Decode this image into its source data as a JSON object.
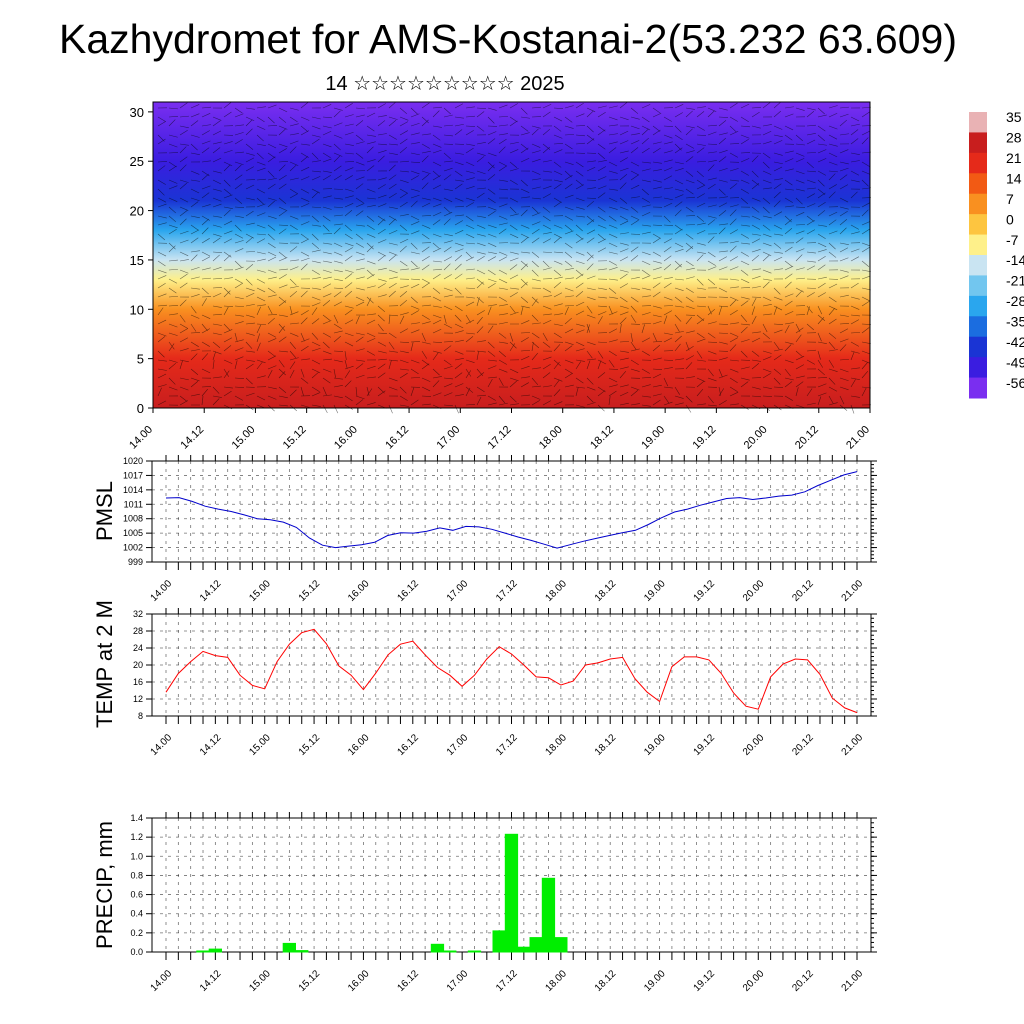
{
  "title": "Kazhydromet for AMS-Kostanai-2(53.232 63.609)",
  "subtitle": "14 ☆☆☆☆☆☆☆☆☆ 2025",
  "time_labels": [
    "14.00",
    "14.12",
    "15.00",
    "15.12",
    "16.00",
    "16.12",
    "17.00",
    "17.12",
    "18.00",
    "18.12",
    "19.00",
    "19.12",
    "20.00",
    "20.12",
    "21.00"
  ],
  "colorbar": {
    "labels": [
      "35",
      "28",
      "21",
      "14",
      "7",
      "0",
      "-7",
      "-14",
      "-21",
      "-28",
      "-35",
      "-42",
      "-49",
      "-56"
    ],
    "colors": [
      "#e9b2b4",
      "#c81e1e",
      "#e52a1a",
      "#f25a14",
      "#f99020",
      "#fdc540",
      "#fef08a",
      "#c9e4f2",
      "#72c6ef",
      "#2aa6ee",
      "#1b6de0",
      "#1a34d4",
      "#3a1de0",
      "#7a2ef0"
    ]
  },
  "chart_data": [
    {
      "name": "profile",
      "type": "heatmap",
      "x": [
        "14.00",
        "14.12",
        "15.00",
        "15.12",
        "16.00",
        "16.12",
        "17.00",
        "17.12",
        "18.00",
        "18.12",
        "19.00",
        "19.12",
        "20.00",
        "20.12",
        "21.00"
      ],
      "y_ticks": [
        0,
        5,
        10,
        15,
        20,
        25,
        30
      ],
      "ylim": [
        0,
        31
      ],
      "color_range": [
        -56,
        35
      ],
      "description_levels": [
        {
          "y": 0,
          "value": 28
        },
        {
          "y": 5,
          "value": 21
        },
        {
          "y": 10,
          "value": 7
        },
        {
          "y": 13,
          "value": -7
        },
        {
          "y": 15,
          "value": -14
        },
        {
          "y": 18,
          "value": -28
        },
        {
          "y": 21,
          "value": -42
        },
        {
          "y": 25,
          "value": -49
        },
        {
          "y": 31,
          "value": -56
        }
      ],
      "grid": false
    },
    {
      "name": "pmsl",
      "type": "line",
      "ylabel": "PMSL",
      "ylim": [
        999,
        1020
      ],
      "y_ticks": [
        999,
        1002,
        1005,
        1008,
        1011,
        1014,
        1017,
        1020
      ],
      "x_ticks": [
        "14.00",
        "14.12",
        "15.00",
        "15.12",
        "16.00",
        "16.12",
        "17.00",
        "17.12",
        "18.00",
        "18.12",
        "19.00",
        "19.12",
        "20.00",
        "20.12",
        "21.00"
      ],
      "color": "#0000cc",
      "values": [
        1012.3,
        1012.4,
        1011.6,
        1010.6,
        1010.0,
        1009.5,
        1008.8,
        1008.0,
        1007.8,
        1007.3,
        1006.2,
        1004.0,
        1002.5,
        1002.0,
        1002.3,
        1002.6,
        1003.1,
        1004.5,
        1005.1,
        1005.0,
        1005.4,
        1006.1,
        1005.6,
        1006.4,
        1006.3,
        1005.8,
        1005.0,
        1004.2,
        1003.5,
        1002.7,
        1001.9,
        1002.6,
        1003.3,
        1003.9,
        1004.5,
        1005.1,
        1005.6,
        1006.8,
        1008.2,
        1009.4,
        1010.0,
        1010.8,
        1011.5,
        1012.2,
        1012.4,
        1012.0,
        1012.3,
        1012.7,
        1012.9,
        1013.6,
        1014.9,
        1016.0,
        1017.1,
        1017.8
      ]
    },
    {
      "name": "temp",
      "type": "line",
      "ylabel": "TEMP at 2 M",
      "ylim": [
        8,
        32
      ],
      "y_ticks": [
        8,
        12,
        16,
        20,
        24,
        28,
        32
      ],
      "x_ticks": [
        "14.00",
        "14.12",
        "15.00",
        "15.12",
        "16.00",
        "16.12",
        "17.00",
        "17.12",
        "18.00",
        "18.12",
        "19.00",
        "19.12",
        "20.00",
        "20.12",
        "21.00"
      ],
      "color": "#ff0000",
      "values": [
        13.6,
        18.0,
        20.8,
        23.2,
        22.2,
        21.8,
        17.6,
        15.2,
        14.4,
        20.8,
        24.9,
        27.6,
        28.4,
        25.0,
        19.8,
        17.6,
        14.2,
        18.1,
        22.4,
        24.9,
        25.6,
        22.4,
        19.4,
        17.6,
        15.0,
        17.6,
        21.4,
        24.3,
        22.6,
        20.0,
        17.2,
        17.0,
        15.3,
        16.2,
        20.0,
        20.5,
        21.4,
        21.8,
        16.8,
        13.6,
        11.4,
        19.6,
        21.9,
        21.9,
        21.2,
        18.0,
        13.4,
        10.3,
        9.6,
        17.2,
        20.2,
        21.4,
        21.2,
        17.8,
        12.2,
        9.9,
        8.8
      ]
    },
    {
      "name": "precip",
      "type": "bar",
      "ylabel": "PRECIP, mm",
      "ylim": [
        0,
        1.4
      ],
      "y_ticks": [
        0.0,
        0.2,
        0.4,
        0.6,
        0.8,
        1.0,
        1.2,
        1.4
      ],
      "x_ticks": [
        "14.00",
        "14.12",
        "15.00",
        "15.12",
        "16.00",
        "16.12",
        "17.00",
        "17.12",
        "18.00",
        "18.12",
        "19.00",
        "19.12",
        "20.00",
        "20.12",
        "21.00"
      ],
      "color": "#00ee00",
      "values": [
        0,
        0,
        0,
        0.01,
        0.03,
        0,
        0,
        0,
        0,
        0,
        0.09,
        0.015,
        0,
        0,
        0,
        0,
        0,
        0,
        0,
        0,
        0,
        0,
        0.08,
        0.01,
        0,
        0.01,
        0,
        0.22,
        1.23,
        0.05,
        0.15,
        0.77,
        0.15,
        0,
        0,
        0,
        0,
        0,
        0,
        0,
        0,
        0,
        0,
        0,
        0,
        0,
        0,
        0,
        0,
        0,
        0,
        0,
        0,
        0,
        0,
        0,
        0
      ]
    }
  ]
}
